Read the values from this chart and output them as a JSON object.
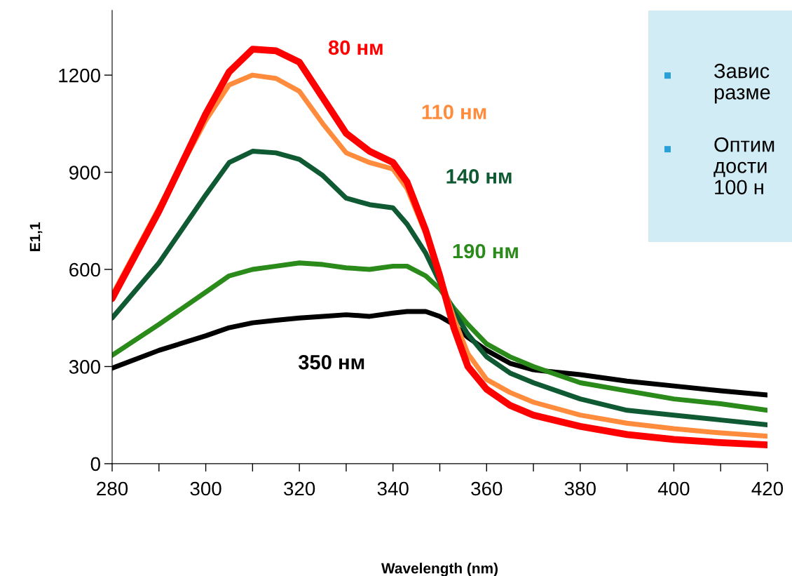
{
  "chart_data": {
    "type": "line",
    "xlabel": "Wavelength (nm)",
    "ylabel": "E1,1",
    "xlim": [
      280,
      420
    ],
    "ylim": [
      0,
      1400
    ],
    "xticks": [
      280,
      {
        "value": 290,
        "label": null
      },
      300,
      {
        "value": 310,
        "label": null
      },
      320,
      {
        "value": 330,
        "label": null
      },
      340,
      {
        "value": 350,
        "label": null
      },
      360,
      {
        "value": 370,
        "label": null
      },
      380,
      {
        "value": 390,
        "label": null
      },
      400,
      {
        "value": 410,
        "label": null
      },
      420
    ],
    "yticks": [
      0,
      300,
      600,
      900,
      1200
    ],
    "grid": false,
    "legend": false,
    "marker": "none",
    "line_style": "solid",
    "x": [
      280,
      290,
      300,
      305,
      310,
      315,
      320,
      325,
      330,
      335,
      340,
      343,
      347,
      350,
      353,
      356,
      360,
      365,
      370,
      380,
      390,
      400,
      410,
      420
    ],
    "series": [
      {
        "name": "350 нм",
        "color": "#000000",
        "values": [
          295,
          350,
          395,
          420,
          435,
          443,
          450,
          455,
          460,
          455,
          465,
          470,
          470,
          455,
          430,
          390,
          350,
          310,
          290,
          275,
          255,
          240,
          225,
          212
        ]
      },
      {
        "name": "190 нм",
        "color": "#2a8a1a",
        "values": [
          335,
          430,
          530,
          580,
          600,
          610,
          620,
          615,
          605,
          600,
          610,
          610,
          580,
          540,
          480,
          430,
          370,
          330,
          300,
          250,
          225,
          200,
          185,
          165
        ]
      },
      {
        "name": "140 нм",
        "color": "#0f5a32",
        "values": [
          450,
          620,
          830,
          930,
          965,
          960,
          940,
          890,
          820,
          800,
          790,
          740,
          650,
          560,
          470,
          400,
          330,
          280,
          250,
          200,
          165,
          150,
          135,
          120
        ]
      },
      {
        "name": "110 нм",
        "color": "#ff8c3c",
        "values": [
          520,
          790,
          1060,
          1170,
          1200,
          1190,
          1150,
          1050,
          960,
          930,
          910,
          850,
          710,
          580,
          450,
          340,
          260,
          220,
          190,
          150,
          125,
          108,
          95,
          85
        ]
      },
      {
        "name": "80 нм",
        "color": "#ff0000",
        "values": [
          510,
          780,
          1080,
          1210,
          1280,
          1275,
          1240,
          1130,
          1020,
          965,
          930,
          870,
          720,
          580,
          420,
          300,
          230,
          180,
          150,
          115,
          90,
          75,
          65,
          58
        ]
      }
    ],
    "annotations": [
      "Завис\nразме",
      "Оптим\nдости\n100 н"
    ]
  }
}
